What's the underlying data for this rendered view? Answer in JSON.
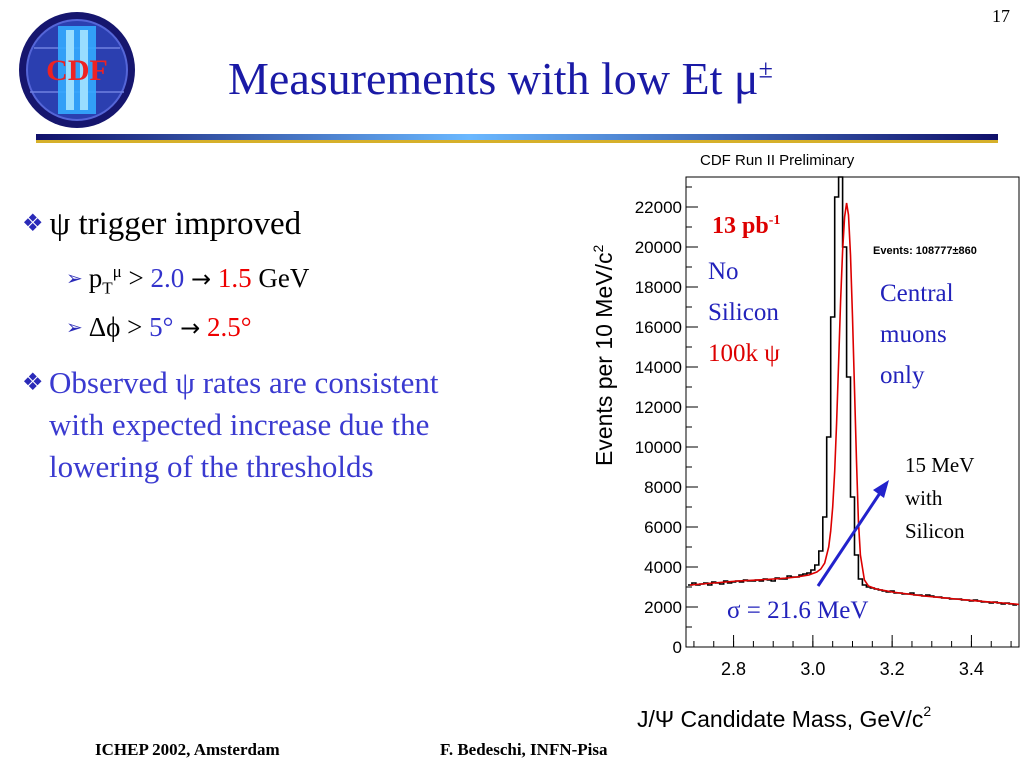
{
  "slide_number": "17",
  "title": {
    "text": "Measurements with low Et μ",
    "sup": "±"
  },
  "logo": {
    "text": "CDF",
    "numeral": "II"
  },
  "bullets": {
    "b1": {
      "symbol": "ψ",
      "text": " trigger improved"
    },
    "sub1": {
      "p": "p",
      "sub": "T",
      "sup": "μ",
      "gt": " > ",
      "old": "2.0",
      "arrow": "→",
      "new": "1.5",
      "unit": " GeV"
    },
    "sub2": {
      "text": "Δϕ > ",
      "old": "5°",
      "arrow": "→",
      "new": "2.5°"
    },
    "b2": {
      "lines": [
        "Observed ψ rates are consistent",
        "with expected increase due the",
        "lowering of the thresholds"
      ]
    }
  },
  "chart_data": {
    "type": "histogram",
    "title": "CDF Run II Preliminary",
    "xlabel": "J/Ψ Candidate Mass, GeV/c",
    "xlabel_sup": "2",
    "ylabel": "Events per 10 MeV/c",
    "ylabel_sup": "2",
    "xlim": [
      2.68,
      3.52
    ],
    "ylim": [
      0,
      23500
    ],
    "xticks": [
      "2.8",
      "3.0",
      "3.2",
      "3.4"
    ],
    "yticks": [
      "0",
      "2000",
      "4000",
      "6000",
      "8000",
      "10000",
      "12000",
      "14000",
      "16000",
      "18000",
      "20000",
      "22000"
    ],
    "bin_width": 0.01,
    "series": [
      {
        "style": "histogram",
        "color": "#000000",
        "x": [
          2.69,
          2.7,
          2.71,
          2.72,
          2.73,
          2.74,
          2.75,
          2.76,
          2.77,
          2.78,
          2.79,
          2.8,
          2.81,
          2.82,
          2.83,
          2.84,
          2.85,
          2.86,
          2.87,
          2.88,
          2.89,
          2.9,
          2.91,
          2.92,
          2.93,
          2.94,
          2.95,
          2.96,
          2.97,
          2.98,
          2.99,
          3.0,
          3.01,
          3.02,
          3.03,
          3.04,
          3.05,
          3.06,
          3.07,
          3.08,
          3.09,
          3.1,
          3.11,
          3.12,
          3.13,
          3.14,
          3.15,
          3.16,
          3.17,
          3.18,
          3.19,
          3.2,
          3.21,
          3.22,
          3.23,
          3.24,
          3.25,
          3.26,
          3.27,
          3.28,
          3.29,
          3.3,
          3.31,
          3.32,
          3.33,
          3.34,
          3.35,
          3.36,
          3.37,
          3.38,
          3.39,
          3.4,
          3.41,
          3.42,
          3.43,
          3.44,
          3.45,
          3.46,
          3.47,
          3.48,
          3.49,
          3.5,
          3.51
        ],
        "y": [
          3100,
          3200,
          3100,
          3150,
          3200,
          3100,
          3250,
          3200,
          3150,
          3300,
          3200,
          3250,
          3300,
          3250,
          3350,
          3300,
          3300,
          3350,
          3300,
          3400,
          3350,
          3300,
          3450,
          3400,
          3400,
          3550,
          3500,
          3500,
          3600,
          3650,
          3700,
          3850,
          4100,
          4800,
          6500,
          10500,
          16500,
          22500,
          24000,
          20000,
          13500,
          7500,
          4600,
          3400,
          3100,
          3000,
          2950,
          2900,
          2850,
          2800,
          2750,
          2800,
          2700,
          2700,
          2650,
          2650,
          2700,
          2600,
          2600,
          2550,
          2600,
          2550,
          2500,
          2500,
          2450,
          2450,
          2400,
          2400,
          2400,
          2350,
          2350,
          2300,
          2350,
          2300,
          2250,
          2250,
          2200,
          2250,
          2200,
          2150,
          2200,
          2150,
          2100
        ]
      },
      {
        "style": "fit",
        "color": "#dd0000",
        "x": [
          2.69,
          2.72,
          2.75,
          2.78,
          2.81,
          2.84,
          2.87,
          2.9,
          2.93,
          2.96,
          2.99,
          3.01,
          3.02,
          3.03,
          3.04,
          3.045,
          3.05,
          3.055,
          3.06,
          3.065,
          3.07,
          3.075,
          3.08,
          3.085,
          3.09,
          3.095,
          3.1,
          3.105,
          3.11,
          3.115,
          3.12,
          3.13,
          3.14,
          3.16,
          3.2,
          3.24,
          3.28,
          3.32,
          3.36,
          3.4,
          3.44,
          3.48,
          3.52
        ],
        "y": [
          3100,
          3150,
          3200,
          3250,
          3300,
          3330,
          3360,
          3400,
          3440,
          3500,
          3600,
          3750,
          3900,
          4200,
          5000,
          5800,
          7000,
          8800,
          11200,
          14200,
          17300,
          19800,
          21500,
          22200,
          21600,
          19600,
          16500,
          12900,
          9300,
          6300,
          4600,
          3350,
          3050,
          2900,
          2750,
          2650,
          2550,
          2480,
          2400,
          2330,
          2260,
          2200,
          2130
        ]
      }
    ],
    "annotations": {
      "lumi": {
        "text": "13 pb",
        "sup": "-1",
        "color": "#dd0000"
      },
      "no_silicon": {
        "lines": [
          "No",
          "Silicon"
        ],
        "color": "#2222bb"
      },
      "count": {
        "text": "100k ψ",
        "color": "#dd0000"
      },
      "events": "Events: 108777±860",
      "central": {
        "lines": [
          "Central",
          "muons",
          "only"
        ],
        "color": "#2222bb"
      },
      "silicon": {
        "lines": [
          "15 MeV",
          "with",
          "Silicon"
        ],
        "color": "#000000"
      },
      "sigma": {
        "text": "σ = 21.6 MeV",
        "color": "#2222bb"
      }
    }
  },
  "footer": {
    "left": "ICHEP 2002, Amsterdam",
    "right": "F. Bedeschi, INFN-Pisa"
  },
  "colors": {
    "title": "#1a1aa6",
    "accent_blue": "#3333cc",
    "accent_red": "#ee0000"
  }
}
